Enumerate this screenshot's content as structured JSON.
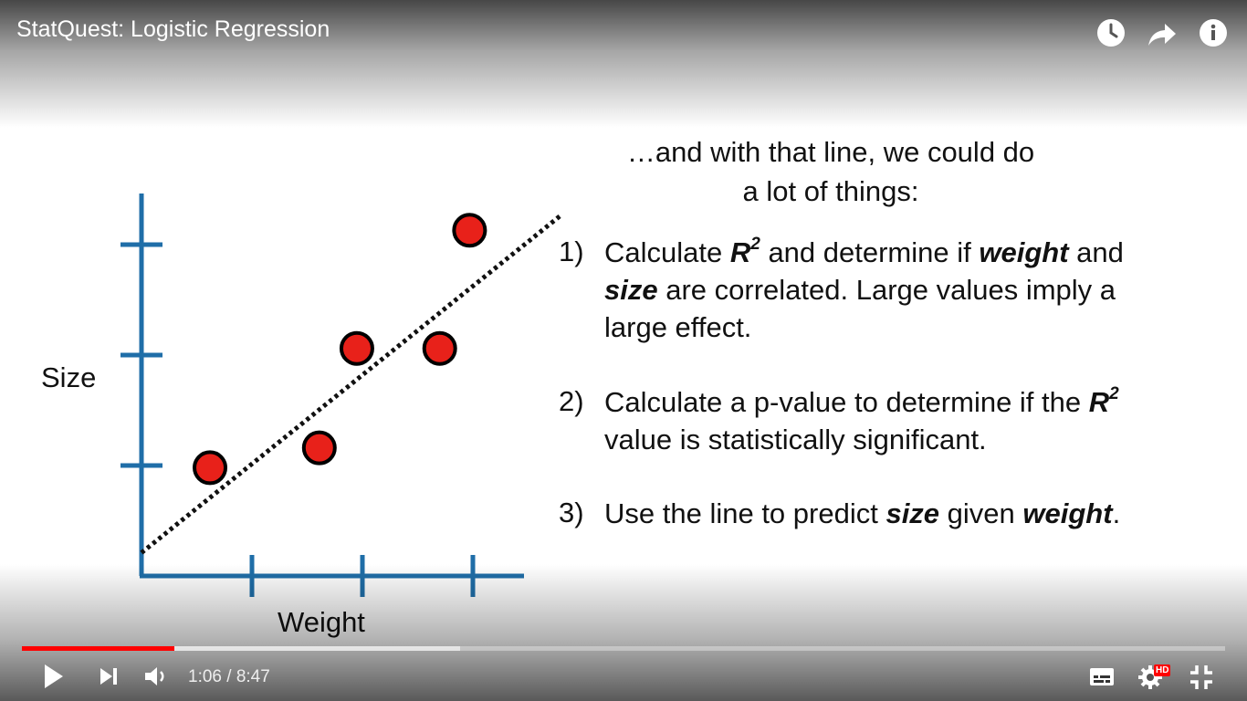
{
  "header": {
    "title": "StatQuest: Logistic Regression",
    "icons": [
      "watch-later-icon",
      "share-icon",
      "info-icon"
    ]
  },
  "slide": {
    "heading_line1": "…and with that line, we could do",
    "heading_line2": "a lot of things:",
    "items": [
      {
        "number": "1)",
        "line1_a": "Calculate ",
        "line1_r": "R",
        "line1_sup": "2",
        "line1_b": " and determine if ",
        "line1_weight": "weight",
        "line1_c": " and",
        "line2_size": "size",
        "line2_rest": " are correlated. Large values imply a",
        "line3": "large effect."
      },
      {
        "number": "2)",
        "line1_a": "Calculate a p-value to determine if the ",
        "line1_r": "R",
        "line1_sup": "2",
        "line2": "value is statistically significant."
      },
      {
        "number": "3)",
        "line1_a": "Use the line to predict ",
        "line1_size": "size",
        "line1_b": " given ",
        "line1_weight": "weight",
        "line1_c": "."
      }
    ],
    "plot": {
      "xlabel": "Weight",
      "ylabel": "Size",
      "point_color": "#e8211a",
      "axis_color": "#1f6ea8",
      "points": [
        {
          "x": 0.62,
          "y": 0.98
        },
        {
          "x": 1.61,
          "y": 1.16
        },
        {
          "x": 1.95,
          "y": 2.06
        },
        {
          "x": 2.7,
          "y": 2.06
        },
        {
          "x": 2.97,
          "y": 3.13
        }
      ],
      "line": {
        "x0": 0,
        "y0": 0.21,
        "x1": 3.79,
        "y1": 3.26
      },
      "x_ticks": [
        1,
        2,
        3
      ],
      "y_ticks": [
        1,
        2,
        3
      ]
    }
  },
  "player": {
    "progress_fraction": 0.1267,
    "buffer_fraction": 0.364,
    "time_current": "1:06",
    "time_separator": " / ",
    "time_total": "8:47",
    "hd_label": "HD"
  }
}
